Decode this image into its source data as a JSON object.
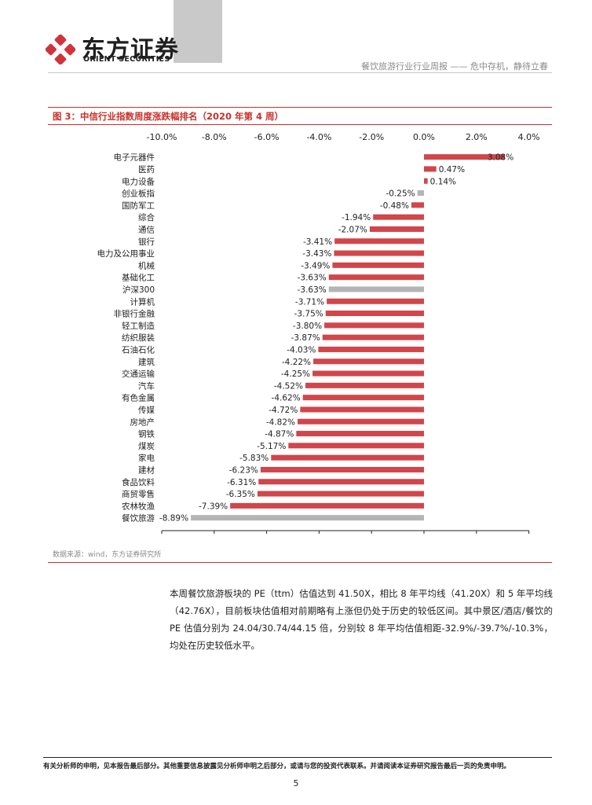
{
  "header": {
    "brand_cn": "东方证券",
    "brand_en": "ORIENT SECURITIES",
    "report_title": "餐饮旅游行业行业周报 —— 危中存机，静待立春"
  },
  "figure": {
    "title": "图 3：中信行业指数周度涨跌幅排名（2020 年第 4 周）",
    "source": "数据来源：wind，东方证券研究所"
  },
  "chart_data": {
    "type": "bar",
    "orientation": "horizontal",
    "x_ticks": [
      "-10.0%",
      "-8.0%",
      "-6.0%",
      "-4.0%",
      "-2.0%",
      "0.0%",
      "2.0%",
      "4.0%"
    ],
    "xlim": [
      -10,
      4
    ],
    "xlabel": "",
    "ylabel": "",
    "categories": [
      "电子元器件",
      "医药",
      "电力设备",
      "创业板指",
      "国防军工",
      "综合",
      "通信",
      "银行",
      "电力及公用事业",
      "机械",
      "基础化工",
      "沪深300",
      "计算机",
      "非银行金融",
      "轻工制造",
      "纺织服装",
      "石油石化",
      "建筑",
      "交通运输",
      "汽车",
      "有色金属",
      "传媒",
      "房地产",
      "钢铁",
      "煤炭",
      "家电",
      "建材",
      "食品饮料",
      "商贸零售",
      "农林牧渔",
      "餐饮旅游"
    ],
    "values": [
      3.08,
      0.47,
      0.14,
      -0.25,
      -0.48,
      -1.94,
      -2.07,
      -3.41,
      -3.43,
      -3.49,
      -3.63,
      -3.63,
      -3.71,
      -3.75,
      -3.8,
      -3.87,
      -4.03,
      -4.22,
      -4.25,
      -4.52,
      -4.62,
      -4.72,
      -4.82,
      -4.87,
      -5.17,
      -5.83,
      -6.23,
      -6.31,
      -6.35,
      -7.39,
      -8.89
    ],
    "value_labels": [
      "3.08%",
      "0.47%",
      "0.14%",
      "-0.25%",
      "-0.48%",
      "-1.94%",
      "-2.07%",
      "-3.41%",
      "-3.43%",
      "-3.49%",
      "-3.63%",
      "-3.63%",
      "-3.71%",
      "-3.75%",
      "-3.80%",
      "-3.87%",
      "-4.03%",
      "-4.22%",
      "-4.25%",
      "-4.52%",
      "-4.62%",
      "-4.72%",
      "-4.82%",
      "-4.87%",
      "-5.17%",
      "-5.83%",
      "-6.23%",
      "-6.31%",
      "-6.35%",
      "-7.39%",
      "-8.89%"
    ],
    "highlight": [
      "创业板指",
      "沪深300",
      "餐饮旅游"
    ],
    "colors": {
      "bar": "#d0464b",
      "highlight": "#b4b4b4"
    },
    "grid": false,
    "legend": "none"
  },
  "body": {
    "paragraph": "本周餐饮旅游板块的 PE（ttm）估值达到 41.50X，相比 8 年平均线（41.20X）和 5 年平均线（42.76X），目前板块估值相对前期略有上涨但仍处于历史的较低区间。其中景区/酒店/餐饮的 PE 估值分别为 24.04/30.74/44.15 倍，分别较 8 年平均估值相距-32.9%/-39.7%/-10.3%，均处在历史较低水平。"
  },
  "footer": {
    "disclaimer": "有关分析师的申明，见本报告最后部分。其他重要信息披露见分析师申明之后部分，或请与您的投资代表联系。并请阅读本证券研究报告最后一页的免责申明。",
    "page_number": "5"
  }
}
